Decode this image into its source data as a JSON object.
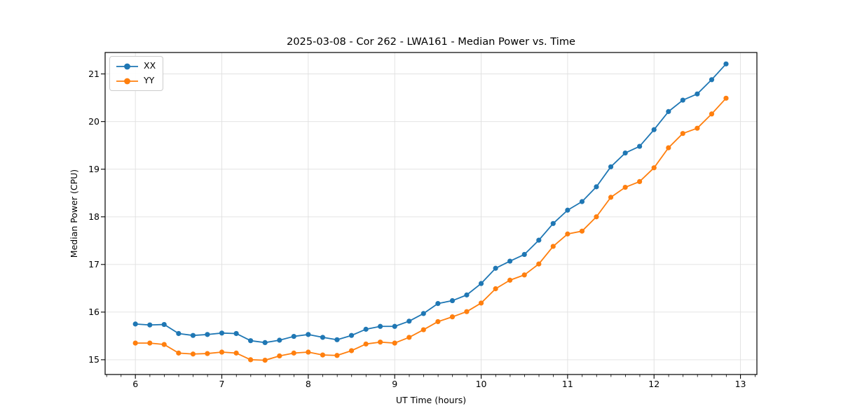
{
  "chart_data": {
    "type": "line",
    "title": "2025-03-08 - Cor 262 - LWA161 - Median Power vs. Time",
    "xlabel": "UT Time (hours)",
    "ylabel": "Median Power (CPU)",
    "xlim": [
      5.65,
      13.19
    ],
    "ylim": [
      14.69,
      21.45
    ],
    "xticks": [
      6,
      7,
      8,
      9,
      10,
      11,
      12,
      13
    ],
    "yticks": [
      15,
      16,
      17,
      18,
      19,
      20,
      21
    ],
    "x_minor_step": 0.1667,
    "grid": true,
    "legend_position": "upper left",
    "marker": "circle",
    "x": [
      6.0,
      6.167,
      6.333,
      6.5,
      6.667,
      6.833,
      7.0,
      7.167,
      7.333,
      7.5,
      7.667,
      7.833,
      8.0,
      8.167,
      8.333,
      8.5,
      8.667,
      8.833,
      9.0,
      9.167,
      9.333,
      9.5,
      9.667,
      9.833,
      10.0,
      10.167,
      10.333,
      10.5,
      10.667,
      10.833,
      11.0,
      11.167,
      11.333,
      11.5,
      11.667,
      11.833,
      12.0,
      12.167,
      12.333,
      12.5,
      12.667,
      12.833
    ],
    "series": [
      {
        "name": "XX",
        "color": "#1f77b4",
        "values": [
          15.75,
          15.73,
          15.74,
          15.55,
          15.51,
          15.53,
          15.56,
          15.55,
          15.4,
          15.36,
          15.41,
          15.49,
          15.53,
          15.47,
          15.42,
          15.51,
          15.64,
          15.7,
          15.7,
          15.81,
          15.97,
          16.18,
          16.24,
          16.36,
          16.6,
          16.92,
          17.07,
          17.21,
          17.51,
          17.86,
          18.14,
          18.32,
          18.63,
          19.05,
          19.34,
          19.48,
          19.83,
          20.21,
          20.45,
          20.58,
          20.88,
          21.21
        ]
      },
      {
        "name": "YY",
        "color": "#ff7f0e",
        "values": [
          15.35,
          15.35,
          15.32,
          15.14,
          15.12,
          15.13,
          15.16,
          15.14,
          15.0,
          14.99,
          15.08,
          15.14,
          15.16,
          15.1,
          15.09,
          15.19,
          15.33,
          15.37,
          15.35,
          15.47,
          15.63,
          15.8,
          15.9,
          16.01,
          16.19,
          16.49,
          16.67,
          16.78,
          17.01,
          17.38,
          17.64,
          17.7,
          18.0,
          18.41,
          18.62,
          18.74,
          19.03,
          19.45,
          19.75,
          19.86,
          20.16,
          20.49
        ]
      }
    ]
  },
  "legend": {
    "items": [
      {
        "label": "XX",
        "color": "#1f77b4"
      },
      {
        "label": "YY",
        "color": "#ff7f0e"
      }
    ]
  },
  "style": {
    "grid_color": "#e0e0e0",
    "spine_color": "#000000",
    "background": "#ffffff"
  }
}
